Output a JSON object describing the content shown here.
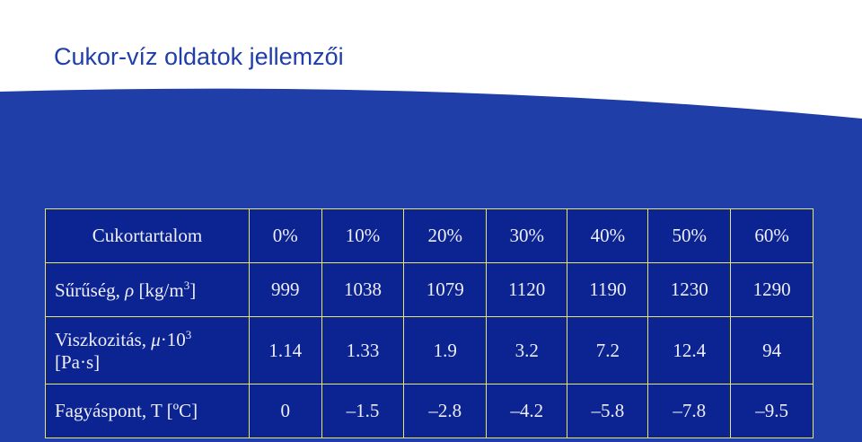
{
  "header": {
    "title": "Cukor-víz oldatok jellemzői"
  },
  "table": {
    "header": [
      "Cukortartalom",
      "0%",
      "10%",
      "20%",
      "30%",
      "40%",
      "50%",
      "60%"
    ],
    "rows": [
      {
        "label": [
          "Sűrűség, ",
          "ρ",
          " [kg/m",
          "3",
          "]"
        ],
        "cells": [
          "999",
          "1038",
          "1079",
          "1120",
          "1190",
          "1230",
          "1290"
        ]
      },
      {
        "label": [
          "Viszkozitás, ",
          "μ",
          "·10",
          "3",
          "[Pa·s]"
        ],
        "cells": [
          "1.14",
          "1.33",
          "1.9",
          "3.2",
          "7.2",
          "12.4",
          "94"
        ]
      },
      {
        "label": [
          "Fagyáspont, T [ºC]"
        ],
        "cells": [
          "0",
          "–1.5",
          "–2.8",
          "–4.2",
          "–5.8",
          "–7.8",
          "–9.5"
        ]
      }
    ]
  }
}
